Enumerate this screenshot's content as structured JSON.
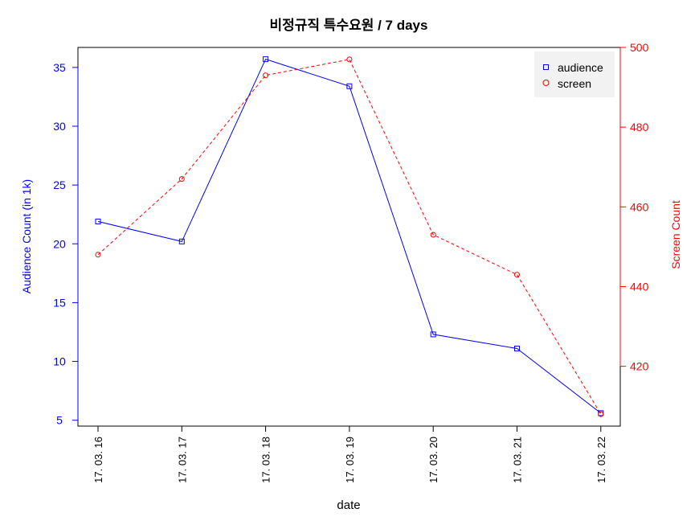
{
  "chart_data": {
    "type": "line",
    "title": "비정규직 특수요원 / 7 days",
    "xlabel": "date",
    "ylabel_left": "Audience Count (in 1k)",
    "ylabel_right": "Screen Count",
    "categories": [
      "17. 03. 16",
      "17. 03. 17",
      "17. 03. 18",
      "17. 03. 19",
      "17. 03. 20",
      "17. 03. 21",
      "17. 03. 22"
    ],
    "series": [
      {
        "name": "audience",
        "axis": "left",
        "color": "#0000ff",
        "marker": "square",
        "line_style": "solid",
        "values": [
          21.9,
          20.2,
          35.7,
          33.4,
          12.3,
          11.1,
          5.6
        ]
      },
      {
        "name": "screen",
        "axis": "right",
        "color": "#ff0000",
        "marker": "circle",
        "line_style": "dashed",
        "values": [
          448,
          467,
          493,
          497,
          453,
          443,
          408
        ]
      }
    ],
    "y_left": {
      "lim": [
        4.5,
        36.7
      ],
      "ticks": [
        "5",
        "10",
        "15",
        "20",
        "25",
        "30",
        "35"
      ]
    },
    "y_right": {
      "lim": [
        405,
        500
      ],
      "ticks": [
        "420",
        "440",
        "460",
        "480",
        "500"
      ]
    },
    "legend": {
      "position": "top-right",
      "background": "#f2f2f2"
    },
    "grid": false
  }
}
